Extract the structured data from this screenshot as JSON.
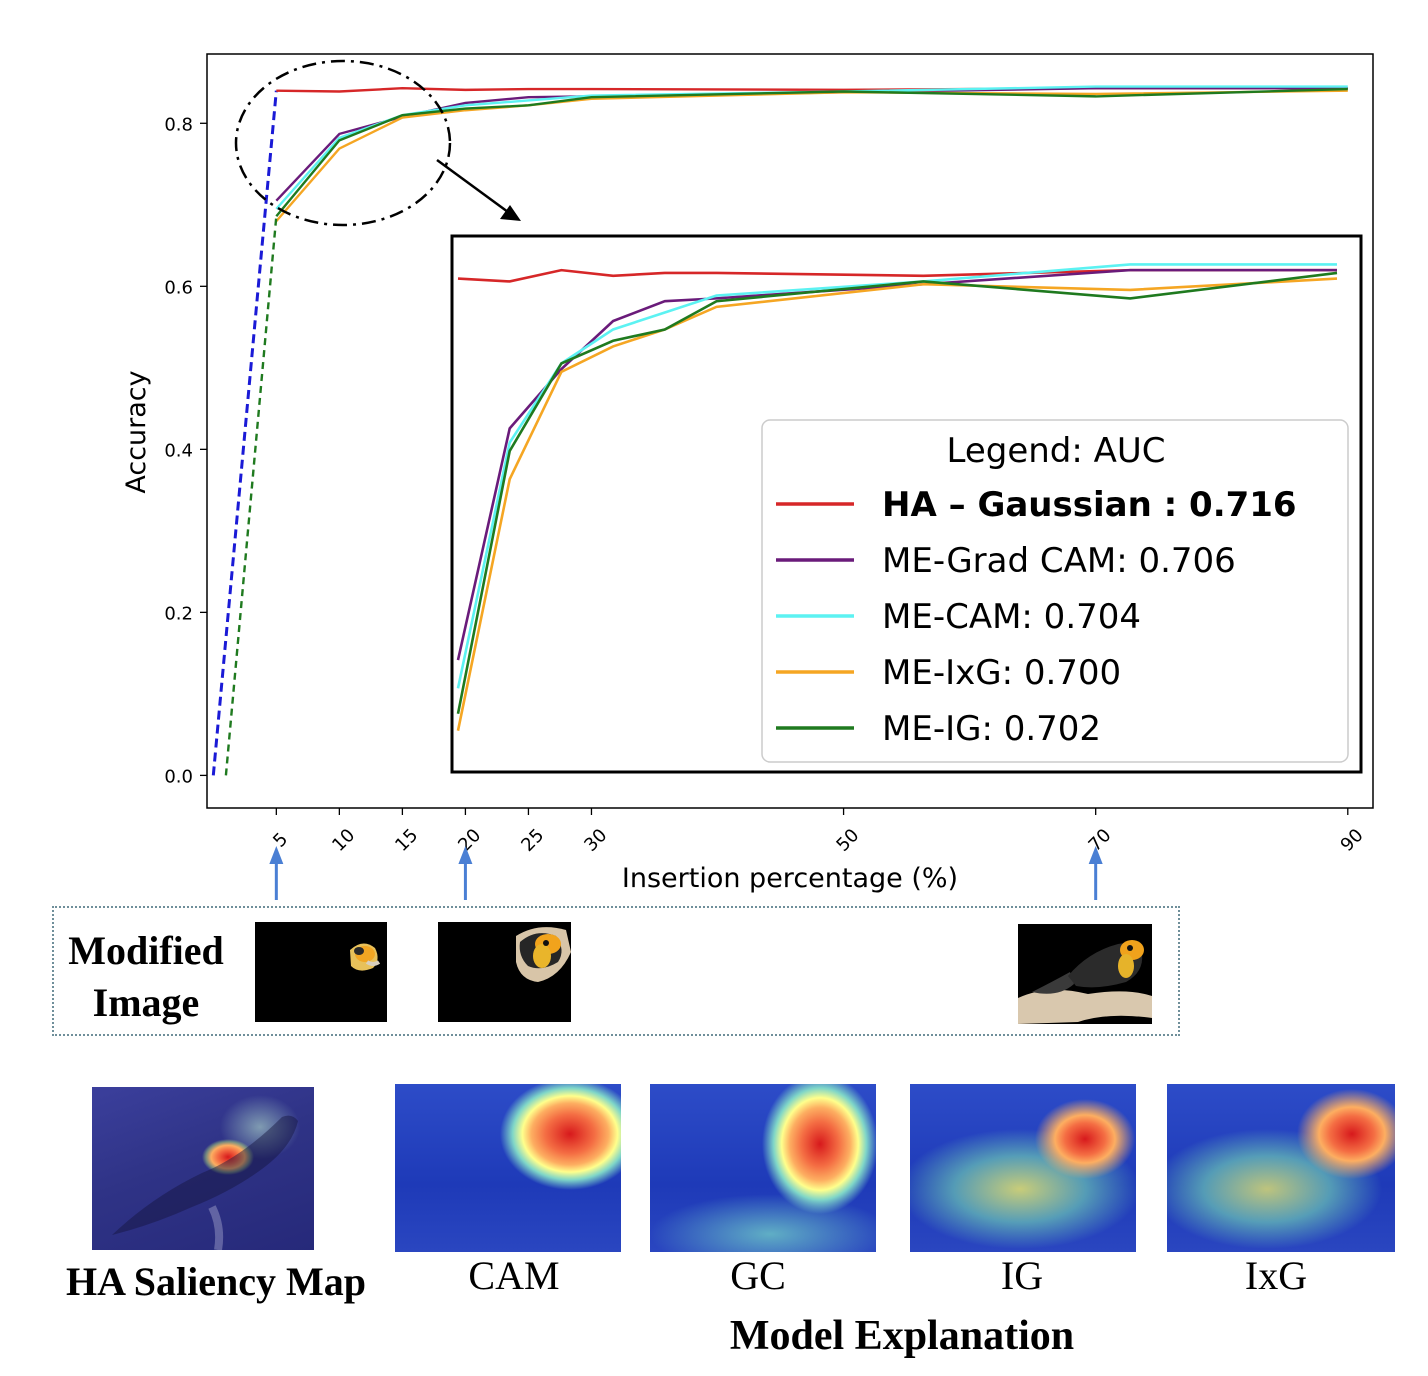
{
  "chart_data": {
    "type": "line",
    "xlabel": "Insertion percentage (%)",
    "ylabel": "Accuracy",
    "xlim": [
      -0.5,
      92
    ],
    "ylim": [
      -0.04,
      0.885
    ],
    "xticks": [
      5,
      10,
      15,
      20,
      25,
      30,
      50,
      70,
      90
    ],
    "yticks": [
      "0.0",
      "0.2",
      "0.4",
      "0.6",
      "0.8"
    ],
    "yticks_values": [
      0.0,
      0.2,
      0.4,
      0.6,
      0.8
    ],
    "baseline": {
      "x": [
        0,
        5
      ],
      "y": [
        0.0,
        0.84
      ],
      "color": "#1a1ad6",
      "style": "dashed"
    },
    "series": [
      {
        "name": "HA – Gaussian : 0.716",
        "bold": true,
        "color": "#d62728",
        "x": [
          5,
          10,
          15,
          20,
          25,
          30,
          50,
          70,
          90
        ],
        "y": [
          0.84,
          0.839,
          0.843,
          0.841,
          0.842,
          0.842,
          0.841,
          0.843,
          0.843
        ]
      },
      {
        "name": "ME-Grad CAM: 0.706",
        "color": "#6a1b7a",
        "x": [
          5,
          10,
          15,
          20,
          25,
          30,
          50,
          70,
          90
        ],
        "y": [
          0.705,
          0.787,
          0.808,
          0.825,
          0.832,
          0.833,
          0.838,
          0.843,
          0.843
        ]
      },
      {
        "name": "ME-CAM: 0.704",
        "color": "#5cf2f2",
        "x": [
          5,
          10,
          15,
          20,
          25,
          30,
          50,
          70,
          90
        ],
        "y": [
          0.695,
          0.782,
          0.81,
          0.822,
          0.828,
          0.834,
          0.839,
          0.845,
          0.845
        ]
      },
      {
        "name": "ME-IxG: 0.700",
        "color": "#f5a623",
        "x": [
          5,
          10,
          15,
          20,
          25,
          30,
          50,
          70,
          90
        ],
        "y": [
          0.68,
          0.769,
          0.807,
          0.816,
          0.822,
          0.83,
          0.838,
          0.836,
          0.84
        ]
      },
      {
        "name": "ME-IG: 0.702",
        "color": "#1f7a1f",
        "x": [
          5,
          10,
          15,
          20,
          25,
          30,
          50,
          70,
          90
        ],
        "y": [
          0.686,
          0.779,
          0.81,
          0.818,
          0.822,
          0.832,
          0.839,
          0.833,
          0.842
        ]
      }
    ],
    "legend": {
      "title": "Legend: AUC",
      "placement": "inside-inset-bottom-right"
    },
    "inset": {
      "x_range": [
        5,
        90
      ],
      "y_range": [
        0.676,
        0.848
      ],
      "description_shown": false
    }
  },
  "labels": {
    "modified_image": "Modified\nImage",
    "modified_line1": "Modified",
    "modified_line2": "Image",
    "ha_saliency": "HA Saliency Map",
    "cam": "CAM",
    "gc": "GC",
    "ig": "IG",
    "ixg": "IxG",
    "model_explanation": "Model Explanation"
  },
  "arrow_ticks": [
    5,
    20,
    70
  ],
  "colors": {
    "arrow": "#4a7fd4",
    "frame_dotted": "#6f8f9a"
  }
}
